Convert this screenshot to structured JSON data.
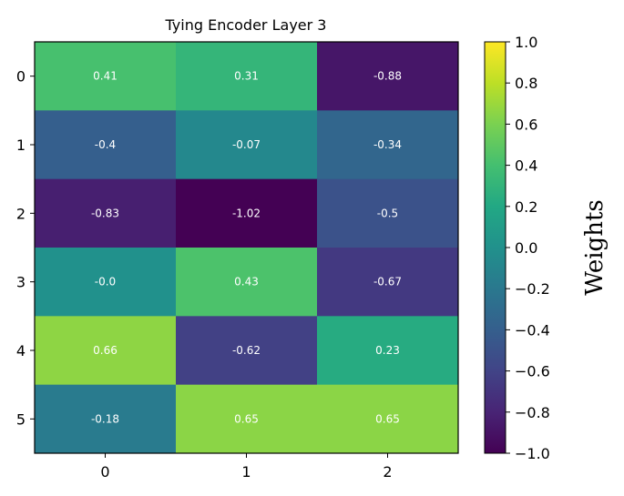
{
  "chart_data": {
    "type": "heatmap",
    "title": "Tying Encoder Layer 3",
    "x_ticks": [
      "0",
      "1",
      "2"
    ],
    "y_ticks": [
      "0",
      "1",
      "2",
      "3",
      "4",
      "5"
    ],
    "values": [
      [
        0.41,
        0.31,
        -0.88
      ],
      [
        -0.4,
        -0.07,
        -0.34
      ],
      [
        -0.83,
        -1.02,
        -0.5
      ],
      [
        -0.0,
        0.43,
        -0.67
      ],
      [
        0.66,
        -0.62,
        0.23
      ],
      [
        -0.18,
        0.65,
        0.65
      ]
    ],
    "cell_labels": [
      [
        "0.41",
        "0.31",
        "-0.88"
      ],
      [
        "-0.4",
        "-0.07",
        "-0.34"
      ],
      [
        "-0.83",
        "-1.02",
        "-0.5"
      ],
      [
        "-0.0",
        "0.43",
        "-0.67"
      ],
      [
        "0.66",
        "-0.62",
        "0.23"
      ],
      [
        "-0.18",
        "0.65",
        "0.65"
      ]
    ],
    "colormap": "viridis",
    "vmin": -1.0,
    "vmax": 1.0,
    "colorbar": {
      "label": "Weights",
      "ticks": [
        1.0,
        0.8,
        0.6,
        0.4,
        0.2,
        0.0,
        -0.2,
        -0.4,
        -0.6,
        -0.8,
        -1.0
      ],
      "tick_labels": [
        "1.0",
        "0.8",
        "0.6",
        "0.4",
        "0.2",
        "0.0",
        "−0.2",
        "−0.4",
        "−0.6",
        "−0.8",
        "−1.0"
      ]
    }
  }
}
